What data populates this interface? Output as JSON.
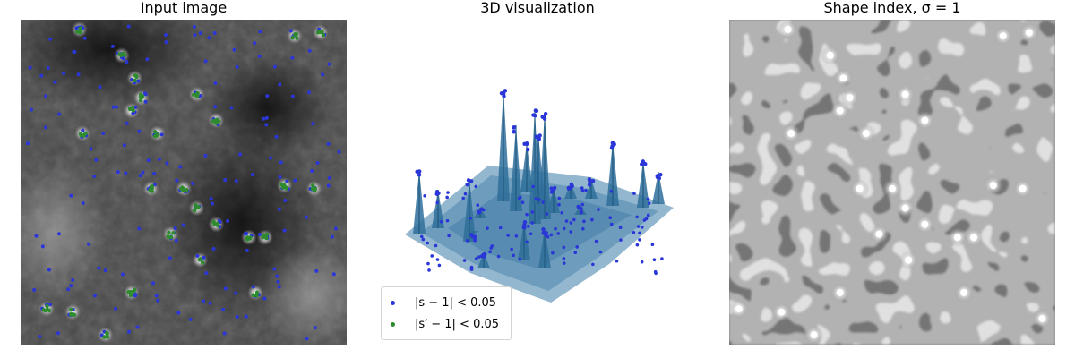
{
  "panels": {
    "left_title": "Input image",
    "middle_title": "3D visualization",
    "right_title": "Shape index, σ = 1"
  },
  "legend": {
    "items": [
      {
        "label": "|s − 1| < 0.05",
        "color": "#2a36d8"
      },
      {
        "label": "|s′ − 1| < 0.05",
        "color": "#2e8b2e"
      }
    ]
  },
  "chart_data": [
    {
      "type": "scatter",
      "title": "Input image",
      "series": [
        {
          "name": "|s − 1| < 0.05",
          "color": "#2a36d8"
        },
        {
          "name": "|s′ − 1| < 0.05",
          "color": "#2e8b2e",
          "points": [
            [
              0.18,
              0.03
            ],
            [
              0.84,
              0.05
            ],
            [
              0.92,
              0.04
            ],
            [
              0.31,
              0.11
            ],
            [
              0.35,
              0.18
            ],
            [
              0.37,
              0.24
            ],
            [
              0.34,
              0.28
            ],
            [
              0.54,
              0.23
            ],
            [
              0.6,
              0.31
            ],
            [
              0.19,
              0.35
            ],
            [
              0.42,
              0.35
            ],
            [
              0.81,
              0.51
            ],
            [
              0.9,
              0.52
            ],
            [
              0.4,
              0.52
            ],
            [
              0.5,
              0.52
            ],
            [
              0.54,
              0.58
            ],
            [
              0.6,
              0.63
            ],
            [
              0.46,
              0.66
            ],
            [
              0.7,
              0.67
            ],
            [
              0.75,
              0.67
            ],
            [
              0.55,
              0.74
            ],
            [
              0.34,
              0.84
            ],
            [
              0.72,
              0.84
            ],
            [
              0.08,
              0.89
            ],
            [
              0.16,
              0.9
            ],
            [
              0.26,
              0.97
            ]
          ]
        }
      ]
    },
    {
      "type": "surface",
      "title": "3D visualization",
      "legend_position": "lower-left"
    },
    {
      "type": "heatmap",
      "title": "Shape index, σ = 1"
    }
  ]
}
